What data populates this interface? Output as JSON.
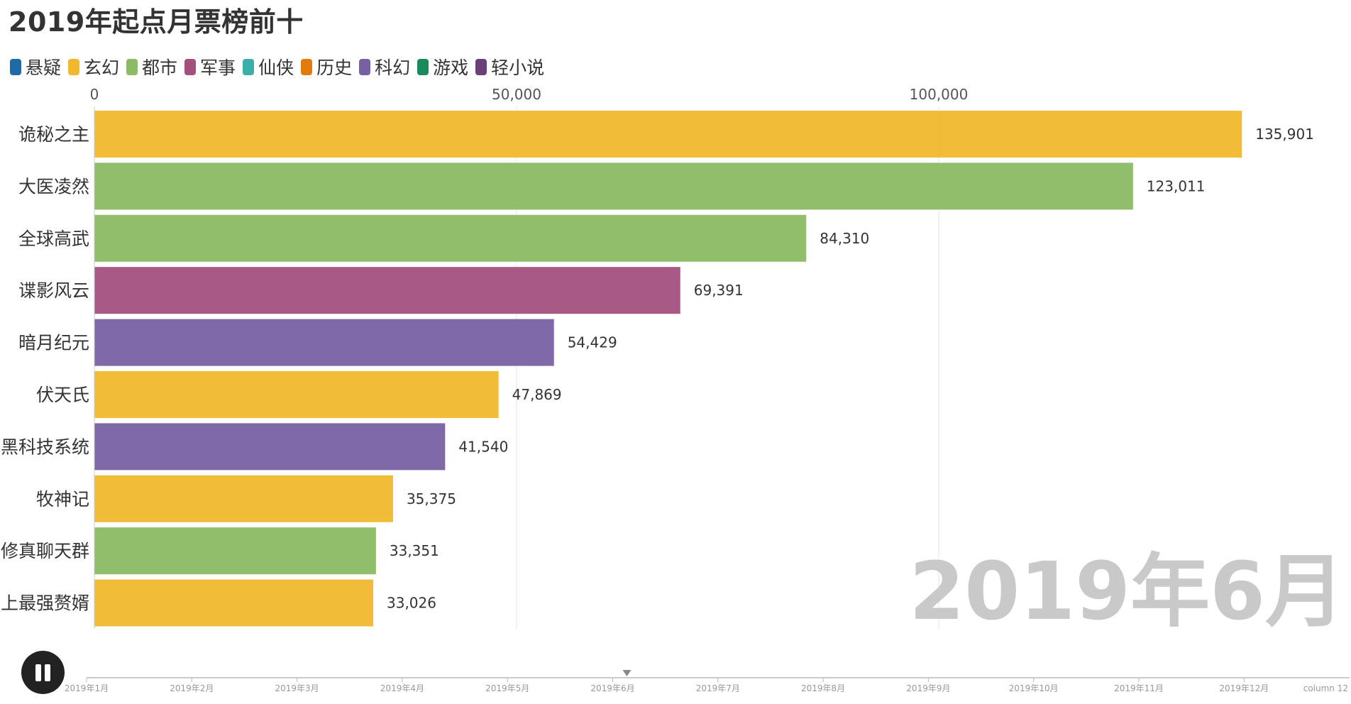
{
  "title": "2019年起点月票榜前十",
  "legend": [
    {
      "name": "悬疑",
      "color": "#1f6aa5"
    },
    {
      "name": "玄幻",
      "color": "#f0b82d"
    },
    {
      "name": "都市",
      "color": "#8bbb62"
    },
    {
      "name": "军事",
      "color": "#a3507f"
    },
    {
      "name": "仙侠",
      "color": "#3aafa9"
    },
    {
      "name": "历史",
      "color": "#e07b0c"
    },
    {
      "name": "科幻",
      "color": "#7861a3"
    },
    {
      "name": "游戏",
      "color": "#1a8a5a"
    },
    {
      "name": "轻小说",
      "color": "#6b3f7a"
    }
  ],
  "chart_data": {
    "type": "bar",
    "orientation": "horizontal",
    "title": "2019年起点月票榜前十",
    "period": "2019年6月",
    "categories": [
      "诡秘之主",
      "大医凌然",
      "全球高武",
      "谍影风云",
      "暗月纪元",
      "伏天氏",
      "黑科技系统",
      "牧神记",
      "修真聊天群",
      "史上最强赘婿"
    ],
    "values": [
      135901,
      123011,
      84310,
      69391,
      54429,
      47869,
      41540,
      35375,
      33351,
      33026
    ],
    "value_labels": [
      "135,901",
      "123,011",
      "84,310",
      "69,391",
      "54,429",
      "47,869",
      "41,540",
      "35,375",
      "33,351",
      "33,026"
    ],
    "genres": [
      "玄幻",
      "都市",
      "都市",
      "军事",
      "科幻",
      "玄幻",
      "科幻",
      "玄幻",
      "都市",
      "玄幻"
    ],
    "xlim": [
      0,
      140000
    ],
    "xticks": [
      0,
      50000,
      100000
    ],
    "xtick_labels": [
      "0",
      "50,000",
      "100,000"
    ],
    "grid": true,
    "legend_position": "top-left"
  },
  "timeline": {
    "labels": [
      "2019年1月",
      "2019年2月",
      "2019年3月",
      "2019年4月",
      "2019年5月",
      "2019年6月",
      "2019年7月",
      "2019年8月",
      "2019年9月",
      "2019年10月",
      "2019年11月",
      "2019年12月",
      "column 12"
    ],
    "current_index": 5,
    "playing": true
  }
}
